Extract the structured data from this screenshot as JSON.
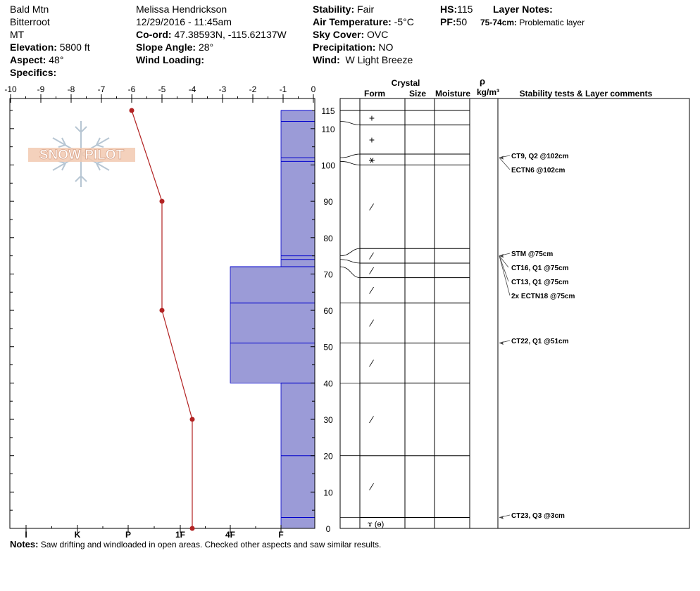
{
  "header": {
    "location": "Bald Mtn",
    "range": "Bitterroot",
    "state": "MT",
    "elevation_label": "Elevation:",
    "elevation": "5800 ft",
    "aspect_label": "Aspect:",
    "aspect": "48°",
    "specifics_label": "Specifics:",
    "observer": "Melissa Hendrickson",
    "datetime": "12/29/2016 - 11:45am",
    "coord_label": "Co-ord:",
    "coord": "47.38593N, -115.62137W",
    "slope_label": "Slope Angle:",
    "slope": "28°",
    "wind_loading_label": "Wind Loading:",
    "stability_label": "Stability:",
    "stability": "Fair",
    "air_temp_label": "Air Temperature:",
    "air_temp": "-5°C",
    "sky_label": "Sky Cover:",
    "sky": "OVC",
    "precip_label": "Precipitation:",
    "precip": "NO",
    "wind_label": "Wind:",
    "wind": "W Light Breeze",
    "hs_label": "HS:",
    "hs": "115",
    "pf_label": "PF:",
    "pf": "50",
    "layer_notes_label": "Layer Notes:",
    "layer_note_range": "75-74cm:",
    "layer_note_text": "Problematic layer"
  },
  "watermark": "SNOW PILOT",
  "notes_label": "Notes:",
  "notes": "Saw drifting and windloaded in open areas. Checked other aspects and saw similar results.",
  "columns": {
    "crystal": "Crystal",
    "form": "Form",
    "size": "Size",
    "moisture": "Moisture",
    "rho": "ρ",
    "density": "kg/m³",
    "comments": "Stability tests & Layer comments"
  },
  "chart_data": {
    "type": "line",
    "temperature_axis": {
      "ticks": [
        -10,
        -9,
        -8,
        -7,
        -6,
        -5,
        -4,
        -3,
        -2,
        -1,
        0
      ],
      "tick_labels": [
        "-10",
        "-9",
        "-8",
        "-7",
        "-6",
        "-5",
        "-4",
        "-3",
        "-2",
        "-1",
        "0"
      ]
    },
    "height_axis": {
      "ticks": [
        0,
        10,
        20,
        30,
        40,
        50,
        60,
        70,
        80,
        90,
        100,
        110,
        115
      ],
      "tick_labels": [
        "0",
        "10",
        "20",
        "30",
        "40",
        "50",
        "60",
        "70",
        "80",
        "90",
        "100",
        "110",
        "115"
      ],
      "range": [
        0,
        115
      ]
    },
    "hardness_axis": {
      "labels": [
        "I",
        "K",
        "P",
        "1F",
        "4F",
        "F"
      ]
    },
    "temperature_profile": [
      {
        "height": 115,
        "temp": -6
      },
      {
        "height": 90,
        "temp": -5
      },
      {
        "height": 60,
        "temp": -5
      },
      {
        "height": 30,
        "temp": -4
      },
      {
        "height": 0,
        "temp": -4
      }
    ],
    "hardness_profile": [
      {
        "top": 115,
        "bottom": 72,
        "hardness": "F"
      },
      {
        "top": 72,
        "bottom": 40,
        "hardness": "4F"
      },
      {
        "top": 40,
        "bottom": 0,
        "hardness": "F"
      }
    ],
    "layer_boundaries": [
      115,
      112,
      102,
      101,
      75,
      74,
      72,
      62,
      51,
      40,
      20,
      3
    ],
    "crystal_layers": [
      {
        "top": 115,
        "bottom": 111,
        "symbol": "+"
      },
      {
        "top": 111,
        "bottom": 103,
        "symbol": "+"
      },
      {
        "top": 103,
        "bottom": 100,
        "symbol": "⚹"
      },
      {
        "top": 100,
        "bottom": 77,
        "symbol": "⁄"
      },
      {
        "top": 77,
        "bottom": 73,
        "symbol": "⁄"
      },
      {
        "top": 73,
        "bottom": 69,
        "symbol": "⁄"
      },
      {
        "top": 69,
        "bottom": 62,
        "symbol": "⁄"
      },
      {
        "top": 62,
        "bottom": 51,
        "symbol": "⁄"
      },
      {
        "top": 51,
        "bottom": 40,
        "symbol": "⁄"
      },
      {
        "top": 40,
        "bottom": 20,
        "symbol": "⁄"
      },
      {
        "top": 20,
        "bottom": 3,
        "symbol": "⁄"
      },
      {
        "top": 3,
        "bottom": 0,
        "symbol": "ɤ (ɵ)"
      }
    ],
    "stability_tests": [
      {
        "height": 102,
        "label": "CT9, Q2 @102cm"
      },
      {
        "height": 102,
        "label": "ECTN6 @102cm"
      },
      {
        "height": 75,
        "label": "STM @75cm"
      },
      {
        "height": 75,
        "label": "CT16, Q1 @75cm"
      },
      {
        "height": 75,
        "label": "CT13, Q1 @75cm"
      },
      {
        "height": 75,
        "label": "2x ECTN18 @75cm"
      },
      {
        "height": 51,
        "label": "CT22, Q1 @51cm"
      },
      {
        "height": 3,
        "label": "CT23, Q3 @3cm"
      }
    ]
  }
}
